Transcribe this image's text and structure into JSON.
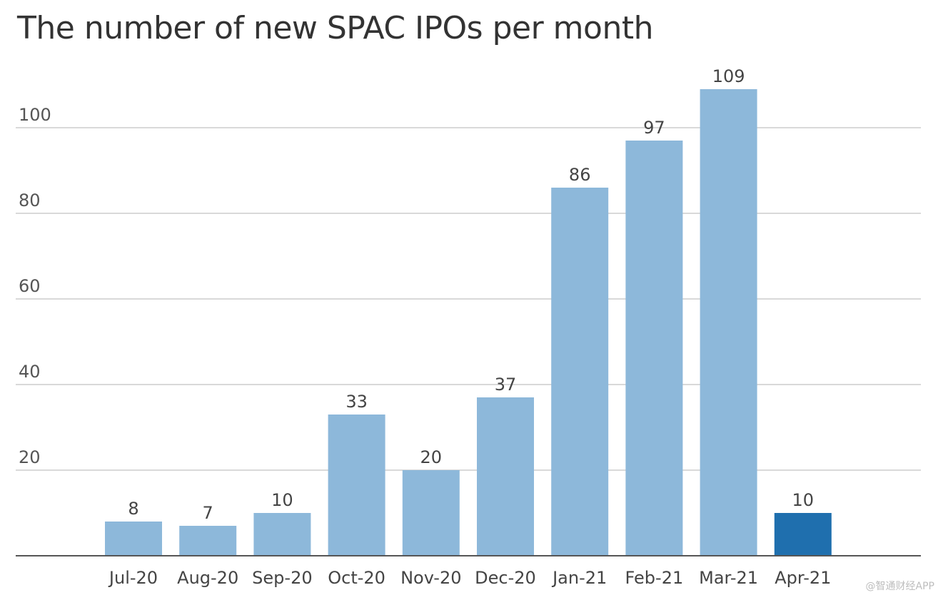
{
  "chart_data": {
    "type": "bar",
    "title": "The number of new SPAC IPOs per month",
    "xlabel": "",
    "ylabel": "",
    "categories": [
      "Jul-20",
      "Aug-20",
      "Sep-20",
      "Oct-20",
      "Nov-20",
      "Dec-20",
      "Jan-21",
      "Feb-21",
      "Mar-21",
      "Apr-21"
    ],
    "values": [
      8,
      7,
      10,
      33,
      20,
      37,
      86,
      97,
      109,
      10
    ],
    "data_labels": [
      "8",
      "7",
      "10",
      "33",
      "20",
      "37",
      "86",
      "97",
      "109",
      "10"
    ],
    "yticks": [
      {
        "value": 20,
        "label": "20"
      },
      {
        "value": 40,
        "label": "40"
      },
      {
        "value": 60,
        "label": "60"
      },
      {
        "value": 80,
        "label": "80"
      },
      {
        "value": 100,
        "label": "100"
      }
    ],
    "ylim": [
      0,
      110
    ],
    "grid": true,
    "legend": "none",
    "colors": {
      "bar": "#8db8da",
      "highlight_bar": "#1f6fae",
      "highlight_category": "Apr-21"
    }
  },
  "watermark": "@智通财经APP"
}
